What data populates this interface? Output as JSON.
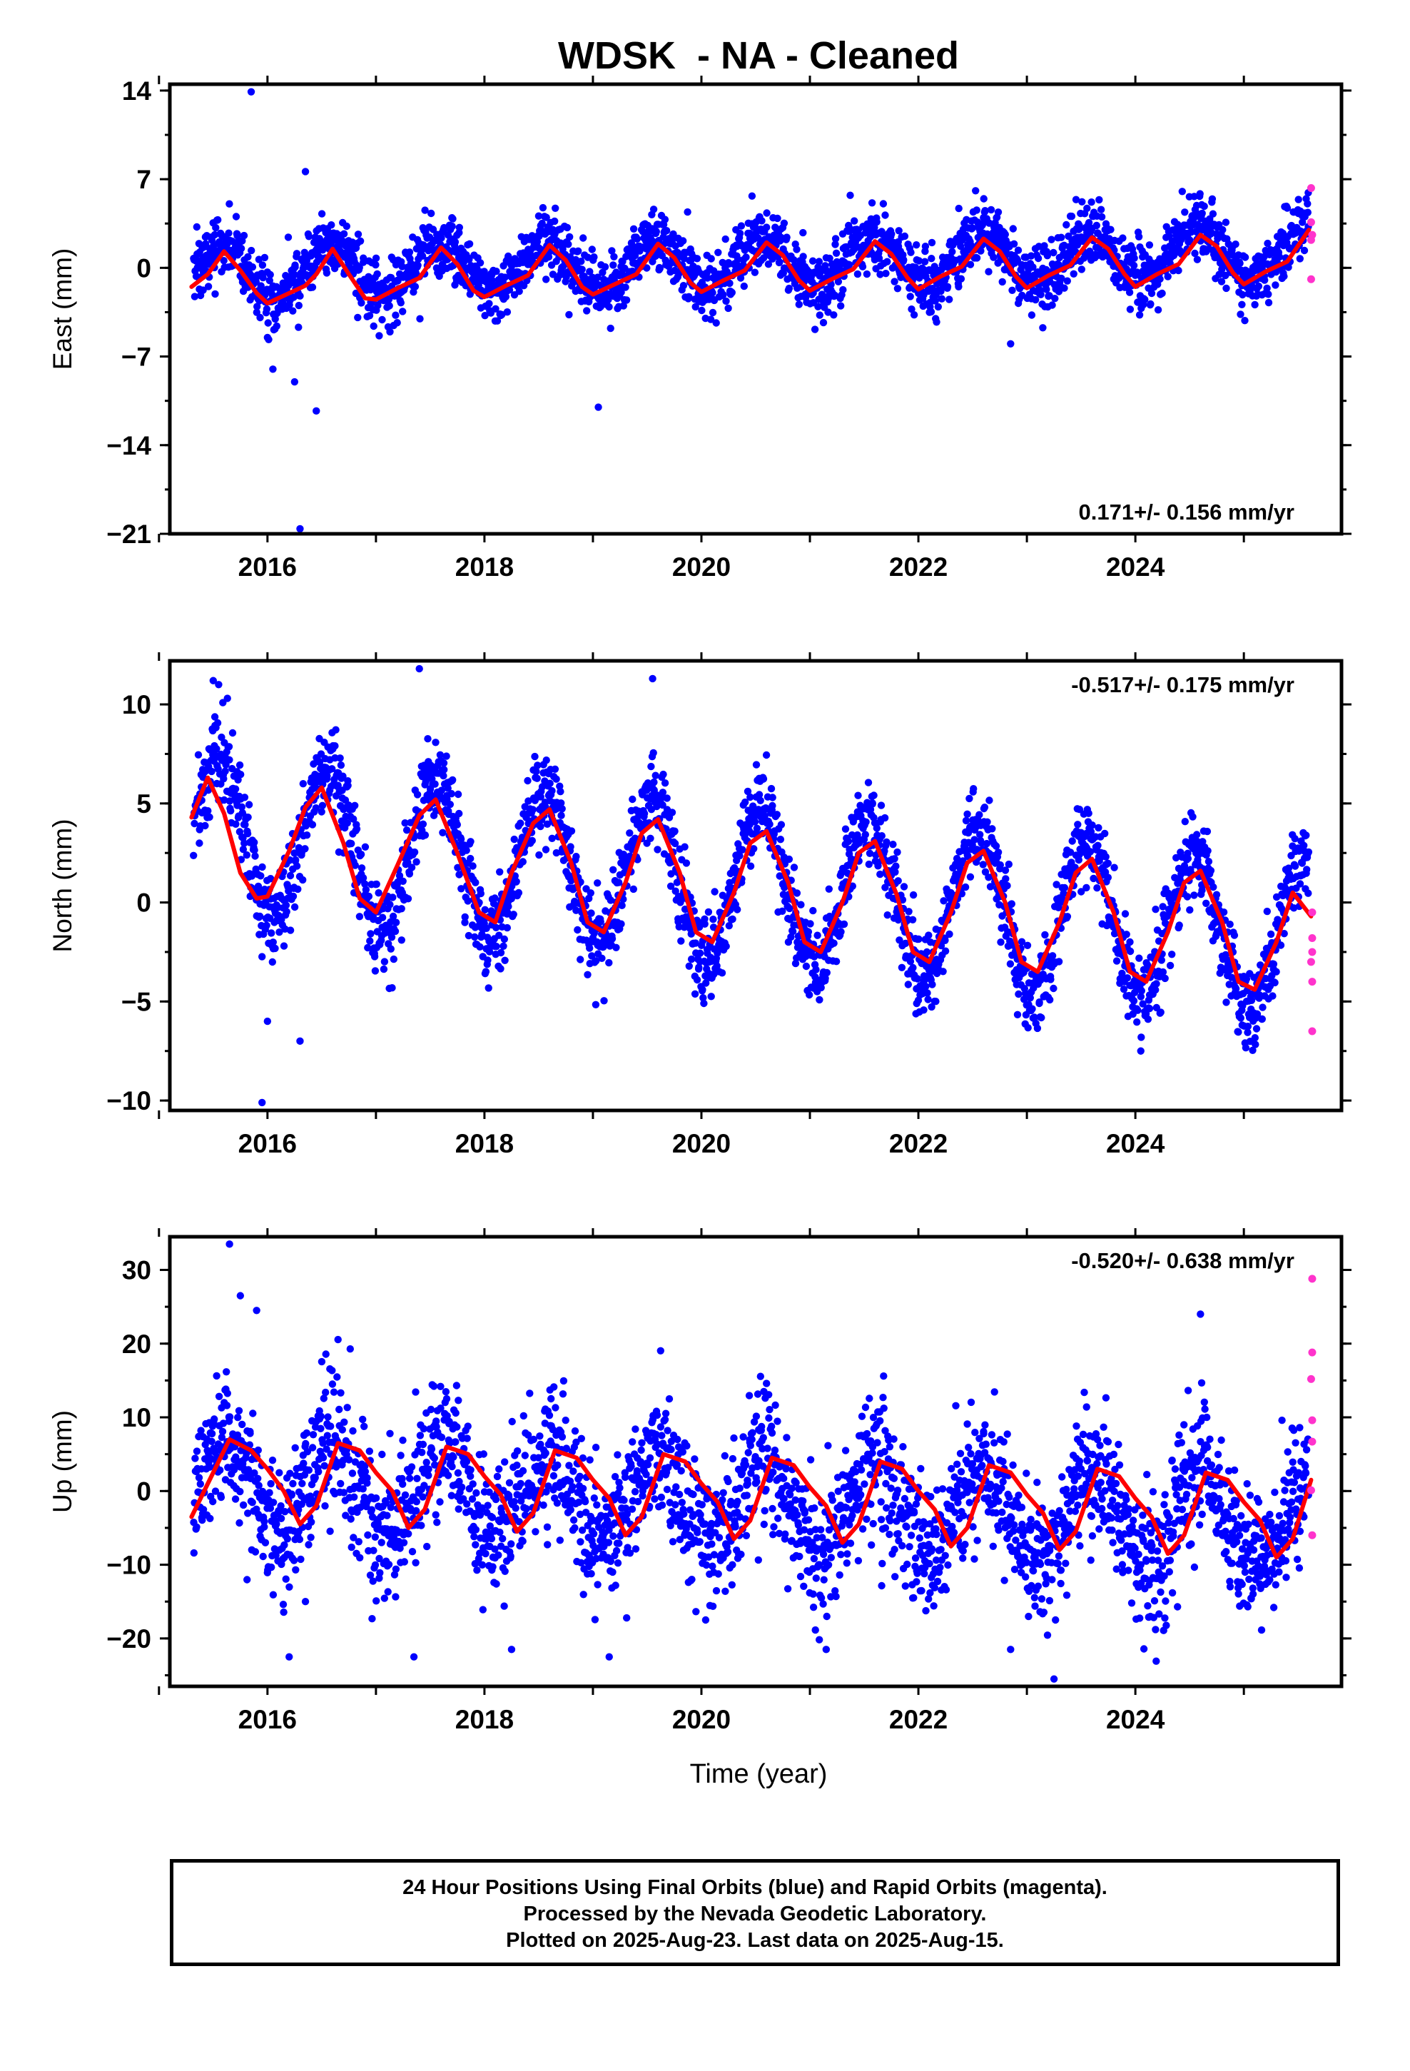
{
  "title": "WDSK  - NA - Cleaned",
  "xlabel": "Time (year)",
  "footer": {
    "line1": "24 Hour Positions Using Final Orbits (blue) and Rapid Orbits (magenta).",
    "line2": "Processed by the Nevada Geodetic Laboratory.",
    "line3": "Plotted on 2025-Aug-23. Last data on 2025-Aug-15."
  },
  "colors": {
    "final": "#0000ff",
    "rapid": "#ff33cc",
    "model": "#ff0000",
    "axis": "#000000"
  },
  "chart_data": [
    {
      "type": "scatter",
      "ylabel": "East (mm)",
      "annotation": "0.171+/- 0.156 mm/yr",
      "xlim": [
        2015.1,
        2025.9
      ],
      "ylim": [
        -21,
        14.5
      ],
      "x_ticks": [
        2016,
        2018,
        2020,
        2022,
        2024
      ],
      "x_tick_labels": [
        "2016",
        "2018",
        "2020",
        "2022",
        "2024"
      ],
      "y_ticks": [
        14,
        7,
        0,
        -7,
        -14,
        -21
      ],
      "y_tick_labels": [
        "14",
        "7",
        "0",
        "−7",
        "−14",
        "−21"
      ],
      "model": {
        "x": [
          2015.3,
          2015.45,
          2015.6,
          2015.75,
          2015.9,
          2016.0,
          2016.2,
          2016.35,
          2016.45,
          2016.6,
          2016.75,
          2016.9,
          2017.0,
          2017.2,
          2017.4,
          2017.6,
          2017.75,
          2017.9,
          2018.0,
          2018.2,
          2018.4,
          2018.6,
          2018.75,
          2018.9,
          2019.0,
          2019.2,
          2019.4,
          2019.6,
          2019.75,
          2019.9,
          2020.0,
          2020.2,
          2020.4,
          2020.6,
          2020.75,
          2020.9,
          2021.0,
          2021.2,
          2021.4,
          2021.6,
          2021.75,
          2021.9,
          2022.0,
          2022.2,
          2022.4,
          2022.6,
          2022.75,
          2022.9,
          2023.0,
          2023.2,
          2023.4,
          2023.6,
          2023.75,
          2023.9,
          2024.0,
          2024.2,
          2024.4,
          2024.6,
          2024.75,
          2024.9,
          2025.0,
          2025.2,
          2025.4,
          2025.6
        ],
        "y": [
          -1.5,
          -0.5,
          1.3,
          -0.2,
          -2.0,
          -2.8,
          -2.0,
          -1.4,
          -0.5,
          1.5,
          -0.5,
          -2.4,
          -2.5,
          -1.6,
          -0.8,
          1.6,
          0.3,
          -1.8,
          -2.3,
          -1.4,
          -0.6,
          1.8,
          0.6,
          -1.5,
          -2.1,
          -1.3,
          -0.5,
          1.9,
          0.8,
          -1.2,
          -1.9,
          -1.0,
          -0.2,
          2.0,
          1.0,
          -1.0,
          -1.8,
          -0.9,
          -0.1,
          2.1,
          1.1,
          -0.8,
          -1.7,
          -0.7,
          0.1,
          2.3,
          1.3,
          -0.7,
          -1.6,
          -0.6,
          0.2,
          2.4,
          1.5,
          -0.5,
          -1.5,
          -0.5,
          0.3,
          2.6,
          1.7,
          -0.4,
          -1.3,
          -0.3,
          0.5,
          3.0
        ]
      },
      "final_scatter": {
        "amplitude": 2.0,
        "phase": 0.58,
        "trend_at_start": -0.5,
        "rate": 0.171,
        "noise": 1.25,
        "count": 2600
      },
      "outliers": {
        "x": [
          2015.85,
          2016.35,
          2016.3,
          2016.45,
          2016.0,
          2016.05,
          2019.05,
          2022.85,
          2016.25
        ],
        "y": [
          13.9,
          7.6,
          -20.6,
          -11.3,
          -5.5,
          -8.0,
          -11.0,
          -6.0,
          -9.0
        ]
      },
      "rapid": {
        "x": [
          2025.62,
          2025.62,
          2025.63,
          2025.62,
          2025.62
        ],
        "y": [
          6.3,
          3.6,
          2.6,
          2.2,
          -0.9
        ]
      }
    },
    {
      "type": "scatter",
      "ylabel": "North (mm)",
      "annotation": "-0.517+/- 0.175 mm/yr",
      "xlim": [
        2015.1,
        2025.9
      ],
      "ylim": [
        -10.5,
        12.2
      ],
      "x_ticks": [
        2016,
        2018,
        2020,
        2022,
        2024
      ],
      "x_tick_labels": [
        "2016",
        "2018",
        "2020",
        "2022",
        "2024"
      ],
      "y_ticks": [
        10,
        5,
        0,
        -5,
        -10
      ],
      "y_tick_labels": [
        "10",
        "5",
        "0",
        "−5",
        "−10"
      ],
      "model": {
        "x": [
          2015.3,
          2015.45,
          2015.6,
          2015.75,
          2015.9,
          2016.0,
          2016.2,
          2016.35,
          2016.5,
          2016.7,
          2016.85,
          2017.0,
          2017.2,
          2017.4,
          2017.55,
          2017.75,
          2017.95,
          2018.1,
          2018.25,
          2018.45,
          2018.6,
          2018.8,
          2018.95,
          2019.1,
          2019.3,
          2019.45,
          2019.6,
          2019.8,
          2019.95,
          2020.1,
          2020.3,
          2020.45,
          2020.6,
          2020.8,
          2020.95,
          2021.1,
          2021.3,
          2021.45,
          2021.6,
          2021.8,
          2021.95,
          2022.1,
          2022.3,
          2022.45,
          2022.6,
          2022.8,
          2022.95,
          2023.1,
          2023.3,
          2023.45,
          2023.6,
          2023.8,
          2023.95,
          2024.1,
          2024.3,
          2024.45,
          2024.6,
          2024.8,
          2024.95,
          2025.1,
          2025.3,
          2025.45,
          2025.62
        ],
        "y": [
          4.3,
          6.3,
          4.5,
          1.5,
          0.2,
          0.3,
          2.6,
          4.8,
          5.8,
          3.0,
          0.2,
          -0.5,
          1.9,
          4.4,
          5.2,
          2.5,
          -0.5,
          -1.0,
          1.5,
          4.0,
          4.7,
          2.0,
          -1.0,
          -1.5,
          1.0,
          3.5,
          4.2,
          1.5,
          -1.5,
          -2.0,
          0.5,
          3.0,
          3.6,
          1.0,
          -2.0,
          -2.5,
          0.0,
          2.5,
          3.1,
          0.4,
          -2.5,
          -3.0,
          -0.5,
          2.0,
          2.6,
          0.0,
          -3.0,
          -3.5,
          -1.0,
          1.5,
          2.2,
          -0.5,
          -3.5,
          -4.0,
          -1.5,
          1.0,
          1.6,
          -1.0,
          -4.0,
          -4.4,
          -2.0,
          0.5,
          -0.7
        ]
      },
      "final_scatter": {
        "amplitude": 3.8,
        "phase": 0.55,
        "trend_at_start": 3.5,
        "rate": -0.517,
        "noise": 1.1,
        "count": 2600
      },
      "outliers": {
        "x": [
          2015.5,
          2015.55,
          2017.4,
          2019.55,
          2015.95,
          2016.3,
          2016.0,
          2024.05
        ],
        "y": [
          11.2,
          11.0,
          11.8,
          11.3,
          -10.1,
          -7.0,
          -6.0,
          -7.5
        ]
      },
      "rapid": {
        "x": [
          2025.63,
          2025.63,
          2025.63,
          2025.62,
          2025.63,
          2025.63
        ],
        "y": [
          -0.5,
          -1.8,
          -2.5,
          -3.0,
          -4.0,
          -6.5
        ]
      }
    },
    {
      "type": "scatter",
      "ylabel": "Up (mm)",
      "annotation": "-0.520+/- 0.638 mm/yr",
      "xlim": [
        2015.1,
        2025.9
      ],
      "ylim": [
        -26.5,
        34.5
      ],
      "x_ticks": [
        2016,
        2018,
        2020,
        2022,
        2024
      ],
      "x_tick_labels": [
        "2016",
        "2018",
        "2020",
        "2022",
        "2024"
      ],
      "y_ticks": [
        30,
        20,
        10,
        0,
        -10,
        -20
      ],
      "y_tick_labels": [
        "30",
        "20",
        "10",
        "0",
        "−10",
        "−20"
      ],
      "model": {
        "x": [
          2015.3,
          2015.45,
          2015.65,
          2015.85,
          2016.0,
          2016.15,
          2016.3,
          2016.45,
          2016.65,
          2016.85,
          2017.0,
          2017.15,
          2017.3,
          2017.45,
          2017.65,
          2017.85,
          2018.0,
          2018.15,
          2018.3,
          2018.45,
          2018.65,
          2018.85,
          2019.0,
          2019.15,
          2019.3,
          2019.45,
          2019.65,
          2019.85,
          2020.0,
          2020.15,
          2020.3,
          2020.45,
          2020.65,
          2020.85,
          2021.0,
          2021.15,
          2021.3,
          2021.45,
          2021.65,
          2021.85,
          2022.0,
          2022.15,
          2022.3,
          2022.45,
          2022.65,
          2022.85,
          2023.0,
          2023.15,
          2023.3,
          2023.45,
          2023.65,
          2023.85,
          2024.0,
          2024.15,
          2024.3,
          2024.45,
          2024.65,
          2024.85,
          2025.0,
          2025.15,
          2025.3,
          2025.45,
          2025.62
        ],
        "y": [
          -3.5,
          1.0,
          7.0,
          5.5,
          3.0,
          0.0,
          -4.5,
          -2.0,
          6.5,
          5.5,
          2.5,
          0.0,
          -5.0,
          -2.5,
          6.0,
          5.0,
          2.0,
          -0.5,
          -5.5,
          -3.0,
          5.5,
          4.5,
          1.5,
          -1.0,
          -6.0,
          -3.5,
          5.0,
          4.0,
          1.0,
          -1.5,
          -6.5,
          -4.0,
          4.5,
          3.5,
          0.5,
          -2.0,
          -7.0,
          -4.5,
          4.0,
          3.0,
          0.0,
          -2.5,
          -7.5,
          -5.0,
          3.5,
          2.5,
          -0.5,
          -3.0,
          -8.0,
          -5.5,
          3.0,
          2.0,
          -1.0,
          -3.5,
          -8.5,
          -6.0,
          2.5,
          1.5,
          -1.5,
          -4.0,
          -9.0,
          -6.5,
          1.5
        ]
      },
      "final_scatter": {
        "amplitude": 6.0,
        "phase": 0.6,
        "trend_at_start": 1.0,
        "rate": -0.52,
        "noise": 4.6,
        "count": 2600
      },
      "outliers": {
        "x": [
          2015.65,
          2016.2,
          2017.35,
          2018.25,
          2019.15,
          2021.15,
          2022.85,
          2023.25,
          2024.6,
          2016.35,
          2015.75,
          2015.9
        ],
        "y": [
          33.5,
          -22.5,
          -22.5,
          -21.5,
          -22.5,
          -21.5,
          -21.5,
          -25.5,
          24.0,
          -15.0,
          26.5,
          24.5
        ]
      },
      "rapid": {
        "x": [
          2025.63,
          2025.63,
          2025.62,
          2025.63,
          2025.63,
          2025.62,
          2025.63
        ],
        "y": [
          28.8,
          18.8,
          15.2,
          9.6,
          6.7,
          0.1,
          -6.0
        ]
      }
    }
  ]
}
